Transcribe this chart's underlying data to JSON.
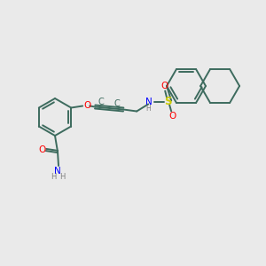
{
  "background_color": "#eaeaea",
  "bond_color": "#3d6b5e",
  "atom_colors": {
    "O": "#ff0000",
    "N": "#0000ff",
    "S": "#cccc00",
    "H": "#808080",
    "C": "#3d6b5e"
  },
  "figsize": [
    3.0,
    3.0
  ],
  "dpi": 100
}
